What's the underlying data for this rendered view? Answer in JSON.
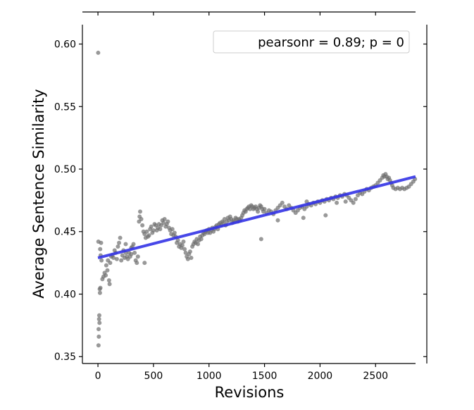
{
  "chart_data": {
    "type": "scatter",
    "title": "",
    "xlabel": "Revisions",
    "ylabel": "Average Sentence Similarity",
    "xlim": [
      -140,
      2860
    ],
    "ylim": [
      0.3445,
      0.6155
    ],
    "xticks": [
      "0",
      "500",
      "1000",
      "1500",
      "2000",
      "2500"
    ],
    "yticks": [
      "0.35",
      "0.40",
      "0.45",
      "0.50",
      "0.55",
      "0.60"
    ],
    "grid": false,
    "legend": {
      "position": "top-right",
      "text": "pearsonr = 0.89; p = 0"
    },
    "regression": {
      "x": [
        0,
        2860
      ],
      "y": [
        0.429,
        0.494
      ]
    },
    "series": [
      {
        "point_color": "#6e6e6e",
        "line_color": "#3333e6",
        "points": [
          [
            2,
            0.593
          ],
          [
            5,
            0.359
          ],
          [
            6,
            0.372
          ],
          [
            8,
            0.366
          ],
          [
            10,
            0.38
          ],
          [
            12,
            0.383
          ],
          [
            14,
            0.377
          ],
          [
            4,
            0.442
          ],
          [
            16,
            0.404
          ],
          [
            18,
            0.401
          ],
          [
            22,
            0.405
          ],
          [
            24,
            0.431
          ],
          [
            20,
            0.436
          ],
          [
            28,
            0.441
          ],
          [
            32,
            0.427
          ],
          [
            40,
            0.412
          ],
          [
            50,
            0.414
          ],
          [
            60,
            0.417
          ],
          [
            70,
            0.415
          ],
          [
            75,
            0.423
          ],
          [
            85,
            0.419
          ],
          [
            90,
            0.427
          ],
          [
            100,
            0.411
          ],
          [
            105,
            0.408
          ],
          [
            110,
            0.425
          ],
          [
            120,
            0.43
          ],
          [
            130,
            0.431
          ],
          [
            140,
            0.429
          ],
          [
            150,
            0.435
          ],
          [
            160,
            0.433
          ],
          [
            170,
            0.428
          ],
          [
            180,
            0.438
          ],
          [
            190,
            0.441
          ],
          [
            200,
            0.445
          ],
          [
            210,
            0.427
          ],
          [
            220,
            0.431
          ],
          [
            230,
            0.435
          ],
          [
            240,
            0.429
          ],
          [
            250,
            0.433
          ],
          [
            260,
            0.43
          ],
          [
            270,
            0.428
          ],
          [
            280,
            0.433
          ],
          [
            290,
            0.43
          ],
          [
            300,
            0.432
          ],
          [
            310,
            0.438
          ],
          [
            320,
            0.44
          ],
          [
            330,
            0.433
          ],
          [
            340,
            0.427
          ],
          [
            350,
            0.425
          ],
          [
            360,
            0.43
          ],
          [
            370,
            0.458
          ],
          [
            375,
            0.462
          ],
          [
            380,
            0.466
          ],
          [
            390,
            0.46
          ],
          [
            400,
            0.455
          ],
          [
            410,
            0.45
          ],
          [
            420,
            0.448
          ],
          [
            430,
            0.445
          ],
          [
            440,
            0.45
          ],
          [
            450,
            0.446
          ],
          [
            460,
            0.447
          ],
          [
            470,
            0.452
          ],
          [
            480,
            0.454
          ],
          [
            490,
            0.449
          ],
          [
            500,
            0.451
          ],
          [
            510,
            0.456
          ],
          [
            520,
            0.455
          ],
          [
            530,
            0.451
          ],
          [
            540,
            0.453
          ],
          [
            550,
            0.456
          ],
          [
            560,
            0.452
          ],
          [
            570,
            0.455
          ],
          [
            580,
            0.459
          ],
          [
            590,
            0.457
          ],
          [
            600,
            0.46
          ],
          [
            610,
            0.454
          ],
          [
            620,
            0.456
          ],
          [
            630,
            0.458
          ],
          [
            640,
            0.453
          ],
          [
            650,
            0.451
          ],
          [
            660,
            0.448
          ],
          [
            670,
            0.452
          ],
          [
            680,
            0.447
          ],
          [
            690,
            0.449
          ],
          [
            700,
            0.446
          ],
          [
            710,
            0.441
          ],
          [
            720,
            0.443
          ],
          [
            730,
            0.438
          ],
          [
            740,
            0.44
          ],
          [
            750,
            0.437
          ],
          [
            760,
            0.439
          ],
          [
            770,
            0.442
          ],
          [
            780,
            0.436
          ],
          [
            790,
            0.433
          ],
          [
            800,
            0.43
          ],
          [
            810,
            0.428
          ],
          [
            820,
            0.432
          ],
          [
            830,
            0.434
          ],
          [
            840,
            0.429
          ],
          [
            850,
            0.438
          ],
          [
            860,
            0.44
          ],
          [
            870,
            0.442
          ],
          [
            880,
            0.441
          ],
          [
            890,
            0.444
          ],
          [
            900,
            0.44
          ],
          [
            910,
            0.443
          ],
          [
            920,
            0.446
          ],
          [
            930,
            0.444
          ],
          [
            940,
            0.447
          ],
          [
            950,
            0.449
          ],
          [
            960,
            0.448
          ],
          [
            970,
            0.45
          ],
          [
            980,
            0.451
          ],
          [
            990,
            0.449
          ],
          [
            1000,
            0.452
          ],
          [
            1010,
            0.449
          ],
          [
            1020,
            0.451
          ],
          [
            1030,
            0.453
          ],
          [
            1040,
            0.45
          ],
          [
            1050,
            0.452
          ],
          [
            1060,
            0.454
          ],
          [
            1070,
            0.455
          ],
          [
            1080,
            0.452
          ],
          [
            1090,
            0.456
          ],
          [
            1100,
            0.457
          ],
          [
            1110,
            0.455
          ],
          [
            1120,
            0.458
          ],
          [
            1130,
            0.457
          ],
          [
            1140,
            0.46
          ],
          [
            1150,
            0.455
          ],
          [
            1160,
            0.458
          ],
          [
            1170,
            0.461
          ],
          [
            1180,
            0.459
          ],
          [
            1190,
            0.462
          ],
          [
            1200,
            0.46
          ],
          [
            1210,
            0.457
          ],
          [
            1220,
            0.459
          ],
          [
            1230,
            0.458
          ],
          [
            1240,
            0.461
          ],
          [
            1250,
            0.46
          ],
          [
            1260,
            0.458
          ],
          [
            1270,
            0.46
          ],
          [
            1280,
            0.459
          ],
          [
            1290,
            0.461
          ],
          [
            1300,
            0.463
          ],
          [
            1310,
            0.465
          ],
          [
            1320,
            0.467
          ],
          [
            1330,
            0.466
          ],
          [
            1340,
            0.468
          ],
          [
            1350,
            0.469
          ],
          [
            1360,
            0.47
          ],
          [
            1370,
            0.468
          ],
          [
            1380,
            0.471
          ],
          [
            1390,
            0.47
          ],
          [
            1400,
            0.468
          ],
          [
            1410,
            0.469
          ],
          [
            1420,
            0.47
          ],
          [
            1430,
            0.468
          ],
          [
            1440,
            0.466
          ],
          [
            1450,
            0.469
          ],
          [
            1460,
            0.471
          ],
          [
            1470,
            0.47
          ],
          [
            1480,
            0.468
          ],
          [
            1490,
            0.466
          ],
          [
            1500,
            0.468
          ],
          [
            1520,
            0.465
          ],
          [
            1540,
            0.467
          ],
          [
            1560,
            0.466
          ],
          [
            1580,
            0.464
          ],
          [
            1600,
            0.467
          ],
          [
            1620,
            0.469
          ],
          [
            1640,
            0.471
          ],
          [
            1660,
            0.473
          ],
          [
            1680,
            0.47
          ],
          [
            1700,
            0.468
          ],
          [
            1720,
            0.471
          ],
          [
            1740,
            0.469
          ],
          [
            1760,
            0.467
          ],
          [
            1780,
            0.465
          ],
          [
            1800,
            0.467
          ],
          [
            1820,
            0.469
          ],
          [
            1840,
            0.47
          ],
          [
            1860,
            0.468
          ],
          [
            1880,
            0.47
          ],
          [
            1900,
            0.472
          ],
          [
            1920,
            0.471
          ],
          [
            1940,
            0.473
          ],
          [
            1960,
            0.472
          ],
          [
            1980,
            0.474
          ],
          [
            2000,
            0.473
          ],
          [
            2020,
            0.475
          ],
          [
            2040,
            0.474
          ],
          [
            2060,
            0.476
          ],
          [
            2080,
            0.475
          ],
          [
            2100,
            0.477
          ],
          [
            2120,
            0.476
          ],
          [
            2140,
            0.478
          ],
          [
            2160,
            0.477
          ],
          [
            2180,
            0.479
          ],
          [
            2200,
            0.478
          ],
          [
            2220,
            0.48
          ],
          [
            2240,
            0.479
          ],
          [
            2260,
            0.477
          ],
          [
            2280,
            0.475
          ],
          [
            2300,
            0.473
          ],
          [
            2320,
            0.476
          ],
          [
            2340,
            0.479
          ],
          [
            2360,
            0.481
          ],
          [
            2380,
            0.48
          ],
          [
            2400,
            0.482
          ],
          [
            2420,
            0.484
          ],
          [
            2440,
            0.483
          ],
          [
            2460,
            0.485
          ],
          [
            2480,
            0.486
          ],
          [
            2500,
            0.487
          ],
          [
            2520,
            0.489
          ],
          [
            2540,
            0.491
          ],
          [
            2560,
            0.493
          ],
          [
            2570,
            0.495
          ],
          [
            2580,
            0.494
          ],
          [
            2590,
            0.496
          ],
          [
            2600,
            0.494
          ],
          [
            2610,
            0.492
          ],
          [
            2620,
            0.493
          ],
          [
            2630,
            0.491
          ],
          [
            2640,
            0.489
          ],
          [
            2650,
            0.487
          ],
          [
            2660,
            0.485
          ],
          [
            2680,
            0.484
          ],
          [
            2700,
            0.485
          ],
          [
            2720,
            0.484
          ],
          [
            2740,
            0.485
          ],
          [
            2760,
            0.484
          ],
          [
            2780,
            0.485
          ],
          [
            2800,
            0.486
          ],
          [
            2820,
            0.488
          ],
          [
            2840,
            0.49
          ],
          [
            2855,
            0.492
          ],
          [
            1470,
            0.444
          ],
          [
            2050,
            0.463
          ],
          [
            2230,
            0.474
          ],
          [
            1850,
            0.461
          ],
          [
            1620,
            0.459
          ],
          [
            1880,
            0.474
          ],
          [
            2150,
            0.473
          ],
          [
            420,
            0.425
          ],
          [
            250,
            0.44
          ],
          [
            300,
            0.437
          ]
        ]
      }
    ]
  }
}
